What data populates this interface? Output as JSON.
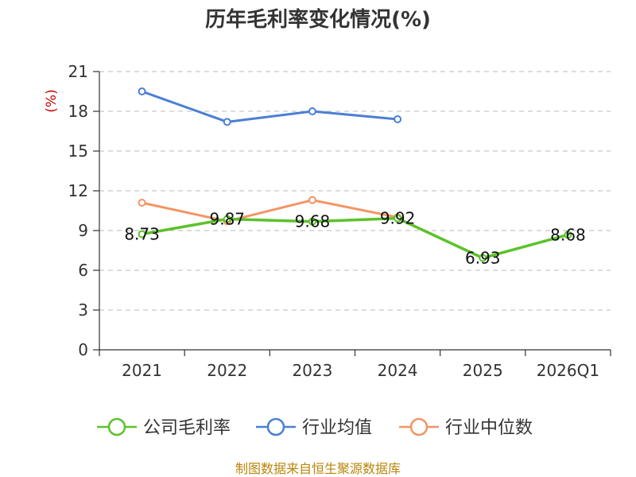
{
  "chart_data": {
    "type": "line",
    "title": "历年毛利率变化情况(%)",
    "ylabel": "(%)",
    "xlabel": "",
    "categories": [
      "2021",
      "2022",
      "2023",
      "2024",
      "2025",
      "2026Q1"
    ],
    "ylim": [
      0,
      21
    ],
    "yticks": [
      "0",
      "3",
      "6",
      "9",
      "12",
      "15",
      "18",
      "21"
    ],
    "grid": "horizontal-dashed",
    "legend_position": "bottom",
    "series": [
      {
        "name": "公司毛利率",
        "color": "#5cc22b",
        "values": [
          8.73,
          9.87,
          9.68,
          9.92,
          6.93,
          8.68
        ],
        "labels": [
          "8.73",
          "9.87",
          "9.68",
          "9.92",
          "6.93",
          "8.68"
        ]
      },
      {
        "name": "行业均值",
        "color": "#4a7fd6",
        "values": [
          19.5,
          17.2,
          18.0,
          17.4,
          null,
          null
        ]
      },
      {
        "name": "行业中位数",
        "color": "#f39563",
        "values": [
          11.1,
          9.7,
          11.3,
          10.0,
          null,
          null
        ]
      }
    ]
  },
  "footer": {
    "source": "制图数据来自恒生聚源数据库"
  }
}
